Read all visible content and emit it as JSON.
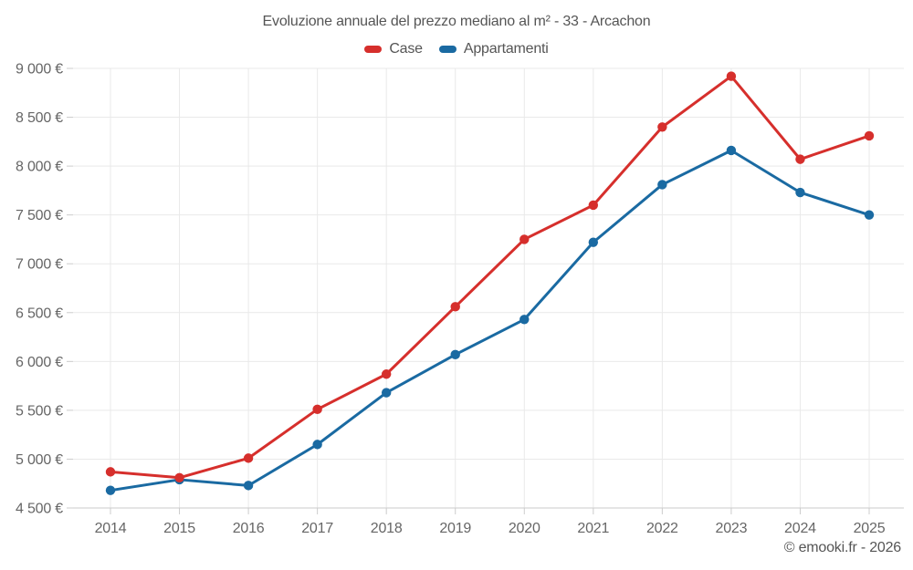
{
  "title": "Evoluzione annuale del prezzo mediano al m² - 33 - Arcachon",
  "attribution": "© emooki.fr - 2026",
  "legend": {
    "items": [
      {
        "label": "Case",
        "color": "#d62f2c"
      },
      {
        "label": "Appartamenti",
        "color": "#1a6aa2"
      }
    ]
  },
  "colors": {
    "case_red": "#d62f2c",
    "apartments_blue": "#1a6aa2",
    "gridline": "#e9e9e9",
    "axis_border": "#cbcbcb",
    "tick_mark": "#cccccc",
    "axis_label": "#666666",
    "text": "#555555",
    "background": "#ffffff"
  },
  "chart_data": {
    "type": "line",
    "title": "Evoluzione annuale del prezzo mediano al m² - 33 - Arcachon",
    "categories": [
      "2014",
      "2015",
      "2016",
      "2017",
      "2018",
      "2019",
      "2020",
      "2021",
      "2022",
      "2023",
      "2024",
      "2025"
    ],
    "series": [
      {
        "name": "Case",
        "color": "#d62f2c",
        "values": [
          4870,
          4810,
          5010,
          5510,
          5870,
          6560,
          7250,
          7600,
          8400,
          8920,
          8070,
          8310
        ]
      },
      {
        "name": "Appartamenti",
        "color": "#1a6aa2",
        "values": [
          4680,
          4790,
          4730,
          5150,
          5680,
          6070,
          6430,
          7220,
          7810,
          8160,
          7730,
          7500
        ]
      }
    ],
    "ylim": [
      4500,
      9000
    ],
    "ytick_step": 500,
    "ytick_labels": [
      "4 500 €",
      "5 000 €",
      "5 500 €",
      "6 000 €",
      "6 500 €",
      "7 000 €",
      "7 500 €",
      "8 000 €",
      "8 500 €",
      "9 000 €"
    ],
    "grid": true,
    "legend_position": "top",
    "marker": "circle",
    "line_width": 3,
    "marker_radius": 5.2
  }
}
